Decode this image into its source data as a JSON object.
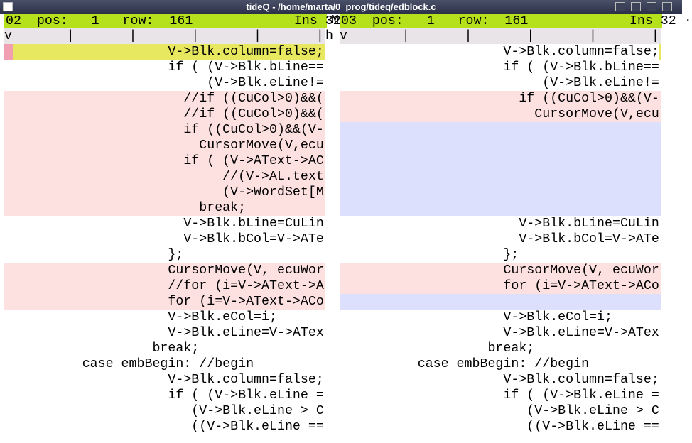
{
  "window": {
    "title": "tideQ - /home/marta/0_prog/tideq/edblock.c"
  },
  "separator": {
    "top": "M",
    "ruler": "h"
  },
  "panes": [
    {
      "status": "02  pos:   1   row:  161             Ins 32",
      "ruler": "v       |       |       |       |       |",
      "lines": [
        {
          "text": "                     V->Blk.column=false;",
          "bg": "#e8e860"
        },
        {
          "text": "                     if ( (V->Blk.bLine==",
          "bg": "#ffffff"
        },
        {
          "text": "                          (V->Blk.eLine!=",
          "bg": "#ffffff"
        },
        {
          "text": "                       //if ((CuCol>0)&&(",
          "bg": "#fde0e0"
        },
        {
          "text": "                       //if ((CuCol>0)&&(",
          "bg": "#fde0e0"
        },
        {
          "text": "                       if ((CuCol>0)&&(V-",
          "bg": "#fde0e0"
        },
        {
          "text": "                         CursorMove(V,ecu",
          "bg": "#fde0e0"
        },
        {
          "text": "                       if ( (V->AText->AC",
          "bg": "#fde0e0"
        },
        {
          "text": "                            //(V->AL.text",
          "bg": "#fde0e0"
        },
        {
          "text": "                            (V->WordSet[M",
          "bg": "#fde0e0"
        },
        {
          "text": "                         break;",
          "bg": "#fde0e0"
        },
        {
          "text": "                       V->Blk.bLine=CuLin",
          "bg": "#ffffff"
        },
        {
          "text": "                       V->Blk.bCol=V->ATe",
          "bg": "#ffffff"
        },
        {
          "text": "                     };",
          "bg": "#ffffff"
        },
        {
          "text": "                     CursorMove(V, ecuWor",
          "bg": "#fde0e0"
        },
        {
          "text": "                     //for (i=V->AText->A",
          "bg": "#fde0e0"
        },
        {
          "text": "                     for (i=V->AText->ACo",
          "bg": "#fde0e0"
        },
        {
          "text": "                     V->Blk.eCol=i;",
          "bg": "#ffffff"
        },
        {
          "text": "                     V->Blk.eLine=V->ATex",
          "bg": "#ffffff"
        },
        {
          "text": "                   break;",
          "bg": "#ffffff"
        },
        {
          "text": "          case embBegin: //begin",
          "bg": "#ffffff"
        },
        {
          "text": "                     V->Blk.column=false;",
          "bg": "#ffffff"
        },
        {
          "text": "                     if ( (V->Blk.eLine =",
          "bg": "#ffffff"
        },
        {
          "text": "                        (V->Blk.eLine > C",
          "bg": "#ffffff"
        },
        {
          "text": "                        ((V->Blk.eLine ==",
          "bg": "#ffffff"
        }
      ]
    },
    {
      "status": "03  pos:   1   row:  161             Ins 32 ·",
      "ruler": "v       |       |       |       |       |",
      "lines": [
        {
          "text": "                     V->Blk.column=false;",
          "bg": "#ffffff"
        },
        {
          "text": "                     if ( (V->Blk.bLine==",
          "bg": "#ffffff"
        },
        {
          "text": "                          (V->Blk.eLine!=",
          "bg": "#ffffff"
        },
        {
          "text": "                       if ((CuCol>0)&&(V-",
          "bg": "#fde0e0"
        },
        {
          "text": "                         CursorMove(V,ecu",
          "bg": "#fde0e0"
        },
        {
          "text": null,
          "bg": "#dde0fc"
        },
        {
          "text": null,
          "bg": "#dde0fc"
        },
        {
          "text": null,
          "bg": "#dde0fc"
        },
        {
          "text": null,
          "bg": "#dde0fc"
        },
        {
          "text": null,
          "bg": "#dde0fc"
        },
        {
          "text": null,
          "bg": "#dde0fc"
        },
        {
          "text": "                       V->Blk.bLine=CuLin",
          "bg": "#ffffff"
        },
        {
          "text": "                       V->Blk.bCol=V->ATe",
          "bg": "#ffffff"
        },
        {
          "text": "                     };",
          "bg": "#ffffff"
        },
        {
          "text": "                     CursorMove(V, ecuWor",
          "bg": "#fde0e0"
        },
        {
          "text": "                     for (i=V->AText->ACo",
          "bg": "#fde0e0"
        },
        {
          "text": null,
          "bg": "#dde0fc"
        },
        {
          "text": "                     V->Blk.eCol=i;",
          "bg": "#ffffff"
        },
        {
          "text": "                     V->Blk.eLine=V->ATex",
          "bg": "#ffffff"
        },
        {
          "text": "                   break;",
          "bg": "#ffffff"
        },
        {
          "text": "          case embBegin: //begin",
          "bg": "#ffffff"
        },
        {
          "text": "                     V->Blk.column=false;",
          "bg": "#ffffff"
        },
        {
          "text": "                     if ( (V->Blk.eLine =",
          "bg": "#ffffff"
        },
        {
          "text": "                        (V->Blk.eLine > C",
          "bg": "#ffffff"
        },
        {
          "text": "                        ((V->Blk.eLine ==",
          "bg": "#ffffff"
        }
      ]
    }
  ]
}
